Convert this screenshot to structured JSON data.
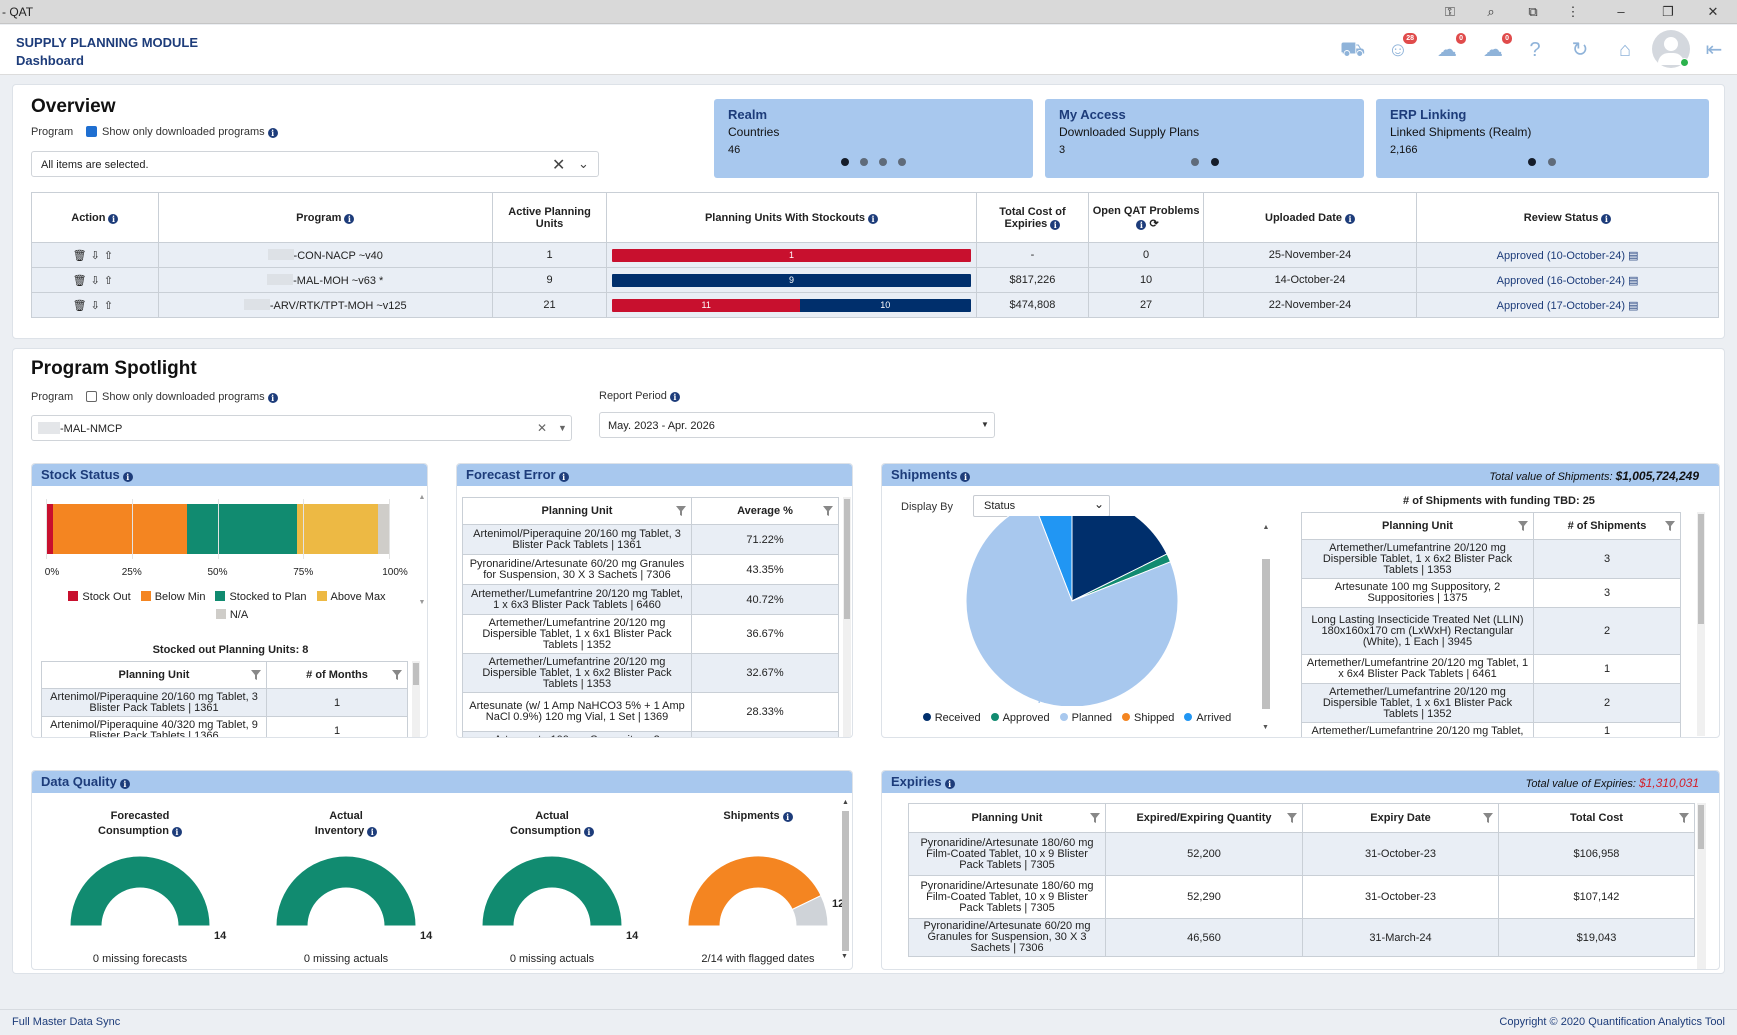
{
  "window": {
    "title": "- QAT"
  },
  "header": {
    "module": "SUPPLY PLANNING MODULE",
    "page": "Dashboard",
    "badges": {
      "notifications": "28",
      "download": "0",
      "upload": "0"
    }
  },
  "overview": {
    "title": "Overview",
    "program_label": "Program",
    "show_downloaded_label": "Show only downloaded programs",
    "program_select_value": "All items are selected.",
    "cards": [
      {
        "title": "Realm",
        "subtitle": "Countries",
        "value": "46"
      },
      {
        "title": "My Access",
        "subtitle": "Downloaded Supply Plans",
        "value": "3"
      },
      {
        "title": "ERP Linking",
        "subtitle": "Linked Shipments (Realm)",
        "value": "2,166"
      }
    ],
    "table": {
      "headers": [
        "Action",
        "Program",
        "Active Planning Units",
        "Planning Units With Stockouts",
        "Total Cost of Expiries",
        "Open QAT Problems",
        "Uploaded Date",
        "Review Status"
      ],
      "rows": [
        {
          "program": "-CON-NACP ~v40",
          "active": "1",
          "stockout_red": 1,
          "stockout_blue": 0,
          "red_label": "1",
          "blue_label": "",
          "cost": "-",
          "problems": "0",
          "uploaded": "25-November-24",
          "review": "Approved (10-October-24)"
        },
        {
          "program": "-MAL-MOH ~v63 *",
          "active": "9",
          "stockout_red": 0,
          "stockout_blue": 9,
          "red_label": "",
          "blue_label": "9",
          "cost": "$817,226",
          "problems": "10",
          "uploaded": "14-October-24",
          "review": "Approved (16-October-24)"
        },
        {
          "program": "-ARV/RTK/TPT-MOH ~v125",
          "active": "21",
          "stockout_red": 11,
          "stockout_blue": 10,
          "red_label": "11",
          "blue_label": "10",
          "cost": "$474,808",
          "problems": "27",
          "uploaded": "22-November-24",
          "review": "Approved (17-October-24)"
        }
      ]
    }
  },
  "spotlight": {
    "title": "Program Spotlight",
    "program_label": "Program",
    "show_downloaded_label": "Show only downloaded programs",
    "program_value": "-MAL-NMCP",
    "report_period_label": "Report Period",
    "report_period_value": "May. 2023 - Apr. 2026"
  },
  "stock_status": {
    "title": "Stock Status",
    "segments": [
      {
        "name": "Stock Out",
        "pct": 2,
        "color": "#c8102e"
      },
      {
        "name": "Below Min",
        "pct": 38,
        "color": "#f48521"
      },
      {
        "name": "Stocked to Plan",
        "pct": 31,
        "color": "#118b70"
      },
      {
        "name": "Above Max",
        "pct": 23,
        "color": "#edb944"
      },
      {
        "name": "N/A",
        "pct": 3,
        "color": "#cfcdc9"
      }
    ],
    "ticks": [
      "0%",
      "25%",
      "50%",
      "75%",
      "100%"
    ],
    "stocked_out_label": "Stocked out Planning Units: 8",
    "table_headers": [
      "Planning Unit",
      "# of Months"
    ],
    "rows": [
      {
        "unit": "Artenimol/Piperaquine 20/160 mg Tablet, 3 Blister Pack Tablets | 1361",
        "months": "1"
      },
      {
        "unit": "Artenimol/Piperaquine 40/320 mg Tablet, 9 Blister Pack Tablets | 1366",
        "months": "1"
      }
    ]
  },
  "forecast_error": {
    "title": "Forecast Error",
    "headers": [
      "Planning Unit",
      "Average %"
    ],
    "rows": [
      {
        "unit": "Artenimol/Piperaquine 20/160 mg Tablet, 3 Blister Pack Tablets | 1361",
        "avg": "71.22%",
        "red": true
      },
      {
        "unit": "Pyronaridine/Artesunate 60/20 mg Granules for Suspension, 30 X 3 Sachets | 7306",
        "avg": "43.35%",
        "red": false
      },
      {
        "unit": "Artemether/Lumefantrine 20/120 mg Tablet, 1 x 6x3 Blister Pack Tablets | 6460",
        "avg": "40.72%",
        "red": false
      },
      {
        "unit": "Artemether/Lumefantrine 20/120 mg Dispersible Tablet, 1 x 6x1 Blister Pack Tablets | 1352",
        "avg": "36.67%",
        "red": false
      },
      {
        "unit": "Artemether/Lumefantrine 20/120 mg Dispersible Tablet, 1 x 6x2 Blister Pack Tablets | 1353",
        "avg": "32.67%",
        "red": false
      },
      {
        "unit": "Artesunate (w/ 1 Amp NaHCO3 5% + 1 Amp NaCl 0.9%) 120 mg Vial, 1 Set | 1369",
        "avg": "28.33%",
        "red": false
      },
      {
        "unit": "Artesunate 100 mg Suppository, 2",
        "avg": "",
        "red": false
      }
    ]
  },
  "shipments": {
    "title": "Shipments",
    "total_label": "Total value of Shipments:",
    "total_value": "$1,005,724,249",
    "display_by_label": "Display By",
    "display_by_value": "Status",
    "pie_label": "70.09%",
    "pie": [
      {
        "name": "Planned",
        "value": 70.09,
        "color": "#a8c8ee"
      },
      {
        "name": "Arrived",
        "value": 5.5,
        "color": "#2196f3"
      },
      {
        "name": "Received",
        "value": 16.5,
        "color": "#002f6c"
      },
      {
        "name": "Approved",
        "value": 1.2,
        "color": "#118b70"
      }
    ],
    "legend": [
      {
        "name": "Received",
        "color": "#002f6c"
      },
      {
        "name": "Approved",
        "color": "#118b70"
      },
      {
        "name": "Planned",
        "color": "#a8c8ee"
      },
      {
        "name": "Shipped",
        "color": "#f48521"
      },
      {
        "name": "Arrived",
        "color": "#2196f3"
      }
    ],
    "tbd_label": "# of Shipments with funding TBD: 25",
    "headers": [
      "Planning Unit",
      "# of Shipments"
    ],
    "rows": [
      {
        "unit": "Artemether/Lumefantrine 20/120 mg Dispersible Tablet, 1 x 6x2 Blister Pack Tablets | 1353",
        "n": "3"
      },
      {
        "unit": "Artesunate 100 mg Suppository, 2 Suppositories | 1375",
        "n": "3"
      },
      {
        "unit": "Long Lasting Insecticide Treated Net (LLIN) 180x160x170 cm (LxWxH) Rectangular (White), 1 Each | 3945",
        "n": "2"
      },
      {
        "unit": "Artemether/Lumefantrine 20/120 mg Tablet, 1 x 6x4 Blister Pack Tablets | 6461",
        "n": "1"
      },
      {
        "unit": "Artemether/Lumefantrine 20/120 mg Dispersible Tablet, 1 x 6x1 Blister Pack Tablets | 1352",
        "n": "2"
      },
      {
        "unit": "Artemether/Lumefantrine 20/120 mg Tablet,",
        "n": "1"
      }
    ]
  },
  "data_quality": {
    "title": "Data Quality",
    "gauges": [
      {
        "title1": "Forecasted",
        "title2": "Consumption",
        "value": "14",
        "sub": "0 missing forecasts",
        "fill": 1,
        "color": "#118b70"
      },
      {
        "title1": "Actual",
        "title2": "Inventory",
        "value": "14",
        "sub": "0 missing actuals",
        "fill": 1,
        "color": "#118b70"
      },
      {
        "title1": "Actual",
        "title2": "Consumption",
        "value": "14",
        "sub": "0 missing actuals",
        "fill": 1,
        "color": "#118b70"
      },
      {
        "title1": "Shipments",
        "title2": "",
        "value": "12",
        "sub": "2/14 with flagged dates",
        "fill": 0.857,
        "color": "#f48521"
      }
    ]
  },
  "expiries": {
    "title": "Expiries",
    "total_label": "Total value of Expiries:",
    "total_value": "$1,310,031",
    "headers": [
      "Planning Unit",
      "Expired/Expiring Quantity",
      "Expiry Date",
      "Total Cost"
    ],
    "rows": [
      {
        "unit": "Pyronaridine/Artesunate 180/60 mg Film-Coated Tablet, 10 x 9 Blister Pack Tablets | 7305",
        "qty": "52,200",
        "date": "31-October-23",
        "cost": "$106,958"
      },
      {
        "unit": "Pyronaridine/Artesunate 180/60 mg Film-Coated Tablet, 10 x 9 Blister Pack Tablets | 7305",
        "qty": "52,290",
        "date": "31-October-23",
        "cost": "$107,142"
      },
      {
        "unit": "Pyronaridine/Artesunate 60/20 mg Granules for Suspension, 30 X 3 Sachets | 7306",
        "qty": "46,560",
        "date": "31-March-24",
        "cost": "$19,043"
      }
    ]
  },
  "footer": {
    "left": "Full Master Data Sync",
    "right": "Copyright © 2020 Quantification Analytics Tool"
  },
  "colors": {
    "red": "#c8102e",
    "navy": "#002f6c",
    "accent": "#a8c8ee",
    "brand": "#1d3c7a"
  }
}
